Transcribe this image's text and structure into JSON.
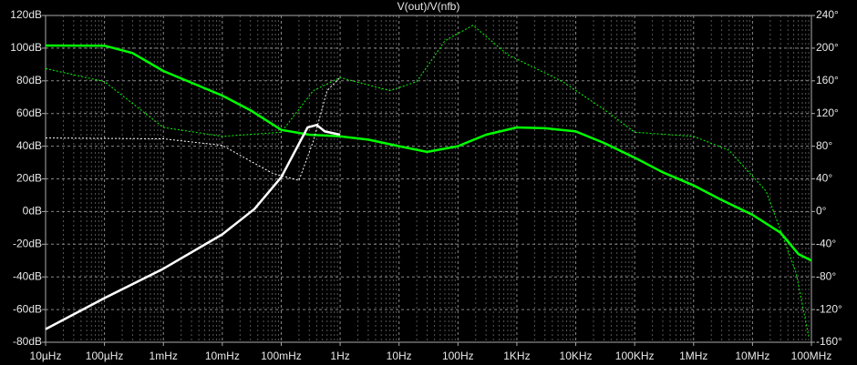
{
  "chart_data": {
    "type": "line",
    "title": "V(out)/V(nfb)",
    "xlog": true,
    "grid": true,
    "xlim": [
      1e-05,
      100000000
    ],
    "xticks": [
      {
        "value": 1e-05,
        "label": "10µHz"
      },
      {
        "value": 0.0001,
        "label": "100µHz"
      },
      {
        "value": 0.001,
        "label": "1mHz"
      },
      {
        "value": 0.01,
        "label": "10mHz"
      },
      {
        "value": 0.1,
        "label": "100mHz"
      },
      {
        "value": 1,
        "label": "1Hz"
      },
      {
        "value": 10,
        "label": "10Hz"
      },
      {
        "value": 100,
        "label": "100Hz"
      },
      {
        "value": 1000,
        "label": "1KHz"
      },
      {
        "value": 10000,
        "label": "10KHz"
      },
      {
        "value": 100000,
        "label": "100KHz"
      },
      {
        "value": 1000000,
        "label": "1MHz"
      },
      {
        "value": 10000000,
        "label": "10MHz"
      },
      {
        "value": 100000000,
        "label": "100MHz"
      }
    ],
    "ylim": [
      -80,
      120
    ],
    "yticks": [
      {
        "value": 120,
        "label": "120dB"
      },
      {
        "value": 100,
        "label": "100dB"
      },
      {
        "value": 80,
        "label": "80dB"
      },
      {
        "value": 60,
        "label": "60dB"
      },
      {
        "value": 40,
        "label": "40dB"
      },
      {
        "value": 20,
        "label": "20dB"
      },
      {
        "value": 0,
        "label": "0dB"
      },
      {
        "value": -20,
        "label": "-20dB"
      },
      {
        "value": -40,
        "label": "-40dB"
      },
      {
        "value": -60,
        "label": "-60dB"
      },
      {
        "value": -80,
        "label": "-80dB"
      }
    ],
    "y2lim": [
      -160,
      240
    ],
    "y2ticks": [
      {
        "value": 240,
        "label": "240°"
      },
      {
        "value": 200,
        "label": "200°"
      },
      {
        "value": 160,
        "label": "160°"
      },
      {
        "value": 120,
        "label": "120°"
      },
      {
        "value": 80,
        "label": "80°"
      },
      {
        "value": 40,
        "label": "40°"
      },
      {
        "value": 0,
        "label": "0°"
      },
      {
        "value": -40,
        "label": "-40°"
      },
      {
        "value": -80,
        "label": "-80°"
      },
      {
        "value": -120,
        "label": "-120°"
      },
      {
        "value": -160,
        "label": "-160°"
      }
    ],
    "series": [
      {
        "color": "#00ff00",
        "line_style": "solid",
        "x": [
          1e-05,
          0.0001,
          0.0003,
          0.001,
          0.01,
          0.03,
          0.1,
          0.3,
          1,
          3,
          10,
          30,
          100,
          300,
          1000,
          3000,
          10000,
          30000,
          100000,
          300000,
          1000000,
          3000000,
          10000000,
          30000000,
          60000000,
          100000000
        ],
        "values": [
          101.6,
          101.5,
          97,
          86,
          71,
          62,
          50,
          47,
          46,
          44,
          40,
          36.5,
          40,
          47,
          51.5,
          51,
          49,
          42,
          33,
          24,
          16,
          7,
          -2,
          -13,
          -26,
          -30
        ]
      },
      {
        "color": "#00ff00",
        "line_style": "dashed",
        "axis": "y2",
        "x": [
          1e-05,
          0.0001,
          0.001,
          0.01,
          0.1,
          0.35,
          1,
          7,
          20,
          60,
          180,
          700,
          6000,
          30000,
          100000,
          1000000,
          4000000,
          17000000,
          55000000,
          90000000
        ],
        "values": [
          175,
          159,
          103,
          92,
          97,
          148,
          164,
          148,
          159,
          209,
          228,
          192,
          159,
          125,
          97,
          92,
          75,
          25,
          -75,
          -153
        ]
      },
      {
        "color": "#ffffff",
        "line_style": "solid",
        "x": [
          1e-05,
          0.0001,
          0.001,
          0.01,
          0.035,
          0.1,
          0.28,
          0.4,
          0.55,
          1
        ],
        "values": [
          -72,
          -53,
          -35,
          -14,
          1.5,
          21,
          51.5,
          53,
          49,
          47
        ]
      },
      {
        "color": "#ffffff",
        "line_style": "dashed",
        "axis": "y2",
        "x": [
          1e-05,
          0.001,
          0.01,
          0.07,
          0.2,
          0.35,
          0.6,
          1
        ],
        "values": [
          90,
          89,
          81,
          47,
          38,
          86,
          148,
          164
        ]
      }
    ]
  }
}
